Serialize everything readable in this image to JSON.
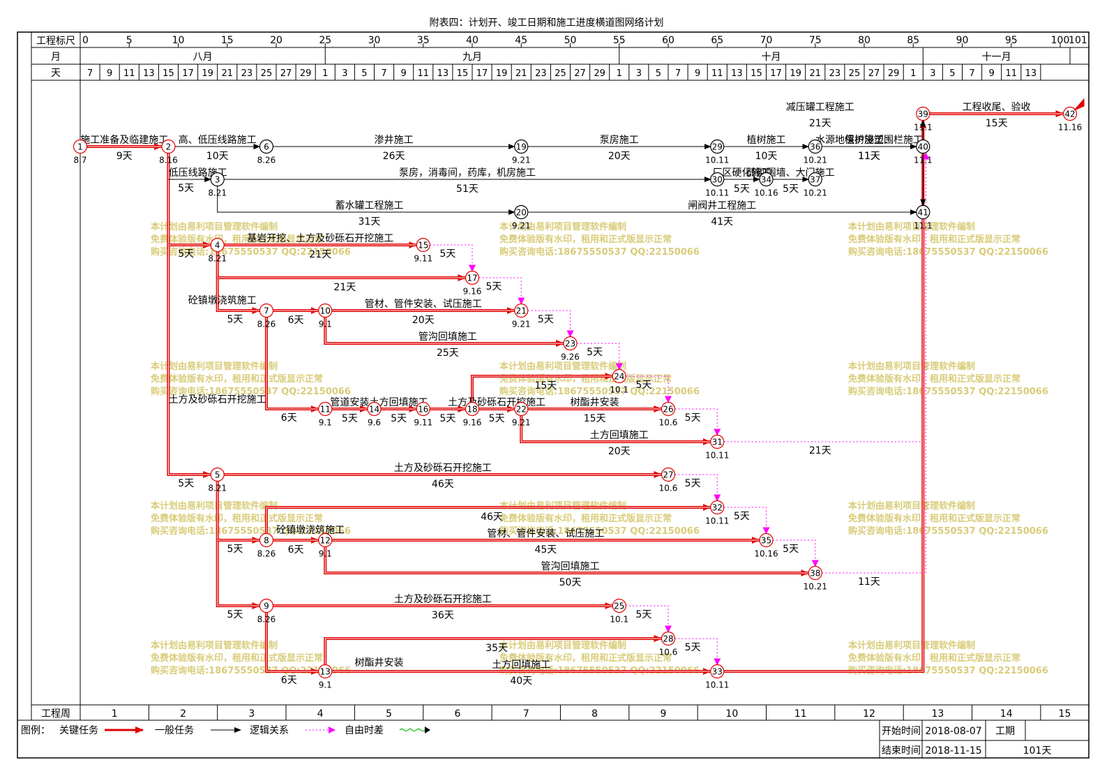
{
  "title": "附表四：计划开、竣工日期和施工进度横道图网络计划",
  "header": {
    "scale_label": "工程标尺",
    "month_label": "月",
    "day_label": "天",
    "week_label": "工程周",
    "scale_ticks": [
      "0",
      "5",
      "10",
      "15",
      "20",
      "25",
      "30",
      "35",
      "40",
      "45",
      "50",
      "55",
      "60",
      "65",
      "70",
      "75",
      "80",
      "85",
      "90",
      "95",
      "100",
      "101"
    ],
    "months": [
      {
        "label": "八月",
        "start": 0,
        "end": 25
      },
      {
        "label": "九月",
        "start": 25,
        "end": 55
      },
      {
        "label": "十月",
        "start": 55,
        "end": 86
      },
      {
        "label": "十一月",
        "start": 86,
        "end": 101
      }
    ],
    "days": [
      "7",
      "9",
      "11",
      "13",
      "15",
      "17",
      "19",
      "21",
      "23",
      "25",
      "27",
      "29",
      "1",
      "3",
      "5",
      "7",
      "9",
      "11",
      "13",
      "15",
      "17",
      "19",
      "21",
      "23",
      "25",
      "27",
      "29",
      "1",
      "3",
      "5",
      "7",
      "9",
      "11",
      "13",
      "15",
      "17",
      "19",
      "21",
      "23",
      "25",
      "27",
      "29",
      "1",
      "3",
      "5",
      "7",
      "9",
      "11",
      "13"
    ],
    "weeks": [
      "1",
      "2",
      "3",
      "4",
      "5",
      "6",
      "7",
      "8",
      "9",
      "10",
      "11",
      "12",
      "13",
      "14",
      "15"
    ]
  },
  "watermark": {
    "line1": "本计划由易利项目管理软件编制",
    "line2": "免费体验版有水印，租用和正式版显示正常",
    "line3": "购买咨询电话:18675550537 QQ:22150066"
  },
  "nodes": [
    {
      "id": "1",
      "t": 0,
      "y": 210,
      "crit": true,
      "date": "8.7"
    },
    {
      "id": "2",
      "t": 9,
      "y": 210,
      "crit": true,
      "date": "8.16"
    },
    {
      "id": "6",
      "t": 19,
      "y": 210,
      "crit": false,
      "date": "8.26"
    },
    {
      "id": "19",
      "t": 45,
      "y": 210,
      "crit": false,
      "date": "9.21"
    },
    {
      "id": "29",
      "t": 65,
      "y": 210,
      "crit": false,
      "date": "10.11"
    },
    {
      "id": "36",
      "t": 75,
      "y": 210,
      "crit": false,
      "date": "10.21"
    },
    {
      "id": "40",
      "t": 86,
      "y": 210,
      "crit": false,
      "date": "11.1"
    },
    {
      "id": "39",
      "t": 86,
      "y": 163,
      "crit": true,
      "date": "11.1"
    },
    {
      "id": "42",
      "t": 101,
      "y": 163,
      "crit": true,
      "date": "11.16"
    },
    {
      "id": "3",
      "t": 14,
      "y": 257,
      "crit": false,
      "date": "8.21"
    },
    {
      "id": "30",
      "t": 65,
      "y": 257,
      "crit": false,
      "date": "10.11"
    },
    {
      "id": "34",
      "t": 70,
      "y": 257,
      "crit": false,
      "date": "10.16"
    },
    {
      "id": "37",
      "t": 75,
      "y": 257,
      "crit": false,
      "date": "10.21"
    },
    {
      "id": "20",
      "t": 45,
      "y": 304,
      "crit": false,
      "date": "9.21"
    },
    {
      "id": "41",
      "t": 86,
      "y": 304,
      "crit": false,
      "date": "11.1"
    },
    {
      "id": "4",
      "t": 14,
      "y": 351,
      "crit": true,
      "date": "8.21"
    },
    {
      "id": "15",
      "t": 35,
      "y": 351,
      "crit": true,
      "date": "9.11"
    },
    {
      "id": "17",
      "t": 40,
      "y": 398,
      "crit": true,
      "date": "9.16"
    },
    {
      "id": "7",
      "t": 19,
      "y": 445,
      "crit": true,
      "date": "8.26"
    },
    {
      "id": "10",
      "t": 25,
      "y": 445,
      "crit": true,
      "date": "9.1"
    },
    {
      "id": "21",
      "t": 45,
      "y": 445,
      "crit": true,
      "date": "9.21"
    },
    {
      "id": "23",
      "t": 50,
      "y": 492,
      "crit": true,
      "date": "9.26"
    },
    {
      "id": "24",
      "t": 55,
      "y": 539,
      "crit": true,
      "date": "10.1"
    },
    {
      "id": "11",
      "t": 25,
      "y": 586,
      "crit": true,
      "date": "9.1"
    },
    {
      "id": "14",
      "t": 30,
      "y": 586,
      "crit": true,
      "date": "9.6"
    },
    {
      "id": "16",
      "t": 35,
      "y": 586,
      "crit": true,
      "date": "9.11"
    },
    {
      "id": "18",
      "t": 40,
      "y": 586,
      "crit": true,
      "date": "9.16"
    },
    {
      "id": "22",
      "t": 45,
      "y": 586,
      "crit": true,
      "date": "9.21"
    },
    {
      "id": "26",
      "t": 60,
      "y": 586,
      "crit": true,
      "date": "10.6"
    },
    {
      "id": "31",
      "t": 65,
      "y": 633,
      "crit": true,
      "date": "10.11"
    },
    {
      "id": "5",
      "t": 14,
      "y": 680,
      "crit": true,
      "date": "8.21"
    },
    {
      "id": "27",
      "t": 60,
      "y": 680,
      "crit": true,
      "date": "10.6"
    },
    {
      "id": "32",
      "t": 65,
      "y": 727,
      "crit": true,
      "date": "10.11"
    },
    {
      "id": "8",
      "t": 19,
      "y": 774,
      "crit": true,
      "date": "8.26"
    },
    {
      "id": "12",
      "t": 25,
      "y": 774,
      "crit": true,
      "date": "9.1"
    },
    {
      "id": "35",
      "t": 70,
      "y": 774,
      "crit": true,
      "date": "10.16"
    },
    {
      "id": "38",
      "t": 75,
      "y": 821,
      "crit": true,
      "date": "10.21"
    },
    {
      "id": "9",
      "t": 19,
      "y": 868,
      "crit": true,
      "date": "8.26"
    },
    {
      "id": "25",
      "t": 55,
      "y": 868,
      "crit": true,
      "date": "10.1"
    },
    {
      "id": "28",
      "t": 60,
      "y": 915,
      "crit": true,
      "date": "10.6"
    },
    {
      "id": "13",
      "t": 25,
      "y": 962,
      "crit": true,
      "date": "9.1"
    },
    {
      "id": "33",
      "t": 65,
      "y": 962,
      "crit": true,
      "date": "10.11"
    }
  ],
  "tasks": [
    {
      "from": "1",
      "to": "2",
      "name": "施工准备及临建施工",
      "dur": "9天",
      "crit": true
    },
    {
      "from": "2",
      "to": "6",
      "name": "高、低压线路施工",
      "dur": "10天",
      "crit": false
    },
    {
      "from": "6",
      "to": "19",
      "name": "渗井施工",
      "dur": "26天",
      "crit": false
    },
    {
      "from": "19",
      "to": "29",
      "name": "泵房施工",
      "dur": "20天",
      "crit": false
    },
    {
      "from": "29",
      "to": "36",
      "name": "植树施工",
      "dur": "10天",
      "crit": false
    },
    {
      "from": "36",
      "to": "40",
      "name": "水源地保护浸塑围栏施工",
      "dur": "11天",
      "crit": false
    },
    {
      "from": "39",
      "to": "42",
      "name": "工程收尾、验收",
      "dur": "15天",
      "crit": true
    },
    {
      "from": "3",
      "to": "30",
      "name": "泵房，消毒间，药库，机房施工",
      "dur": "51天",
      "crit": false
    },
    {
      "from": "30",
      "to": "34",
      "name": "厂区硬化施工",
      "dur": "5天",
      "crit": false
    },
    {
      "from": "34",
      "to": "37",
      "name": "砖砌围墙、大门施工",
      "dur": "5天",
      "crit": false
    },
    {
      "from": "37",
      "to": "40",
      "name": "植树施工：",
      "dur": "11天",
      "crit": false
    },
    {
      "from": "3",
      "to": "20",
      "name": "蓄水罐工程施工",
      "dur": "31天",
      "crit": false
    },
    {
      "from": "20",
      "to": "41",
      "name": "闸阀井工程施工",
      "dur": "41天",
      "crit": false
    },
    {
      "from": "4",
      "to": "15",
      "name": "基岩开挖、土方及砂砾石开挖施工",
      "dur": "21天",
      "crit": true
    },
    {
      "from": "4",
      "to": "17",
      "name": "",
      "dur": "21天",
      "crit": true
    },
    {
      "from": "7",
      "to": "10",
      "name": "",
      "dur": "6天",
      "crit": true
    },
    {
      "from": "10",
      "to": "21",
      "name": "管材、管件安装、试压施工",
      "dur": "20天",
      "crit": true
    },
    {
      "from": "10",
      "to": "23",
      "name": "管沟回填施工",
      "dur": "25天",
      "crit": true
    },
    {
      "from": "18",
      "to": "24",
      "name": "",
      "dur": "15天",
      "crit": true
    },
    {
      "from": "11",
      "to": "14",
      "name": "管道安装",
      "dur": "5天",
      "crit": true
    },
    {
      "from": "14",
      "to": "16",
      "name": "土方回填施工",
      "dur": "5天",
      "crit": true
    },
    {
      "from": "16",
      "to": "18",
      "name": "",
      "dur": "5天",
      "crit": true
    },
    {
      "from": "18",
      "to": "22",
      "name": "土方及砂砾石开挖施工",
      "dur": "5天",
      "crit": true
    },
    {
      "from": "22",
      "to": "26",
      "name": "树酯井安装",
      "dur": "15天",
      "crit": true
    },
    {
      "from": "22",
      "to": "31",
      "name": "土方回填施工",
      "dur": "20天",
      "crit": true
    },
    {
      "from": "5",
      "to": "27",
      "name": "土方及砂砾石开挖施工",
      "dur": "46天",
      "crit": true
    },
    {
      "from": "8",
      "to": "32",
      "name": "",
      "dur": "46天",
      "crit": true
    },
    {
      "from": "8",
      "to": "12",
      "name": "",
      "dur": "6天",
      "crit": true
    },
    {
      "from": "12",
      "to": "35",
      "name": "管材、管件安装、试压施工",
      "dur": "45天",
      "crit": true
    },
    {
      "from": "12",
      "to": "38",
      "name": "管沟回填施工",
      "dur": "50天",
      "crit": true
    },
    {
      "from": "9",
      "to": "25",
      "name": "土方及砂砾石开挖施工",
      "dur": "36天",
      "crit": true
    },
    {
      "from": "13",
      "to": "28",
      "name": "",
      "dur": "35天",
      "crit": true
    },
    {
      "from": "13",
      "to": "33",
      "name": "土方回填施工",
      "dur": "40天",
      "crit": true
    },
    {
      "from": "33",
      "to": "39",
      "name": "减压罐工程施工",
      "dur": "21天",
      "crit": true
    }
  ],
  "branch_labels": [
    {
      "text": "低压线路施工",
      "t": 12,
      "y": 252
    },
    {
      "text": "砼镇墩浇筑施工",
      "t": 14.5,
      "y": 435
    },
    {
      "text": "土方及砂砾石开挖施工",
      "t": 14,
      "y": 577
    },
    {
      "text": "砼镇墩浇筑施工",
      "t": 23.5,
      "y": 764
    },
    {
      "text": "树酯井安装",
      "t": 30.5,
      "y": 954
    }
  ],
  "branch_durs": [
    {
      "text": "5天",
      "t": 10.8,
      "y": 274
    },
    {
      "text": "5天",
      "t": 10.8,
      "y": 368
    },
    {
      "text": "5天",
      "t": 15.8,
      "y": 462
    },
    {
      "text": "6天",
      "t": 21.3,
      "y": 603
    },
    {
      "text": "5天",
      "t": 10.8,
      "y": 697
    },
    {
      "text": "5天",
      "t": 15.8,
      "y": 791
    },
    {
      "text": "5天",
      "t": 15.8,
      "y": 885
    },
    {
      "text": "6天",
      "t": 21.3,
      "y": 979
    }
  ],
  "float_durs": [
    {
      "text": "5天",
      "t": 37.5,
      "y": 368
    },
    {
      "text": "5天",
      "t": 42.2,
      "y": 415
    },
    {
      "text": "5天",
      "t": 47.5,
      "y": 462
    },
    {
      "text": "5天",
      "t": 52.5,
      "y": 509
    },
    {
      "text": "5天",
      "t": 57.5,
      "y": 556
    },
    {
      "text": "5天",
      "t": 62.5,
      "y": 603
    },
    {
      "text": "21天",
      "t": 75.5,
      "y": 650
    },
    {
      "text": "5天",
      "t": 62.5,
      "y": 697
    },
    {
      "text": "5天",
      "t": 67.5,
      "y": 744
    },
    {
      "text": "5天",
      "t": 72.5,
      "y": 791
    },
    {
      "text": "11天",
      "t": 80.5,
      "y": 838
    },
    {
      "text": "5天",
      "t": 57.5,
      "y": 885
    },
    {
      "text": "5天",
      "t": 62.5,
      "y": 932
    }
  ],
  "legend": {
    "label": "图例：",
    "critical": "关键任务",
    "normal": "一般任务",
    "logic": "逻辑关系",
    "float": "自由时差"
  },
  "info": {
    "start_label": "开始时间",
    "start_value": "2018-08-07",
    "end_label": "结束时间",
    "end_value": "2018-11-15",
    "period_label": "工期",
    "period_value": "101天"
  }
}
